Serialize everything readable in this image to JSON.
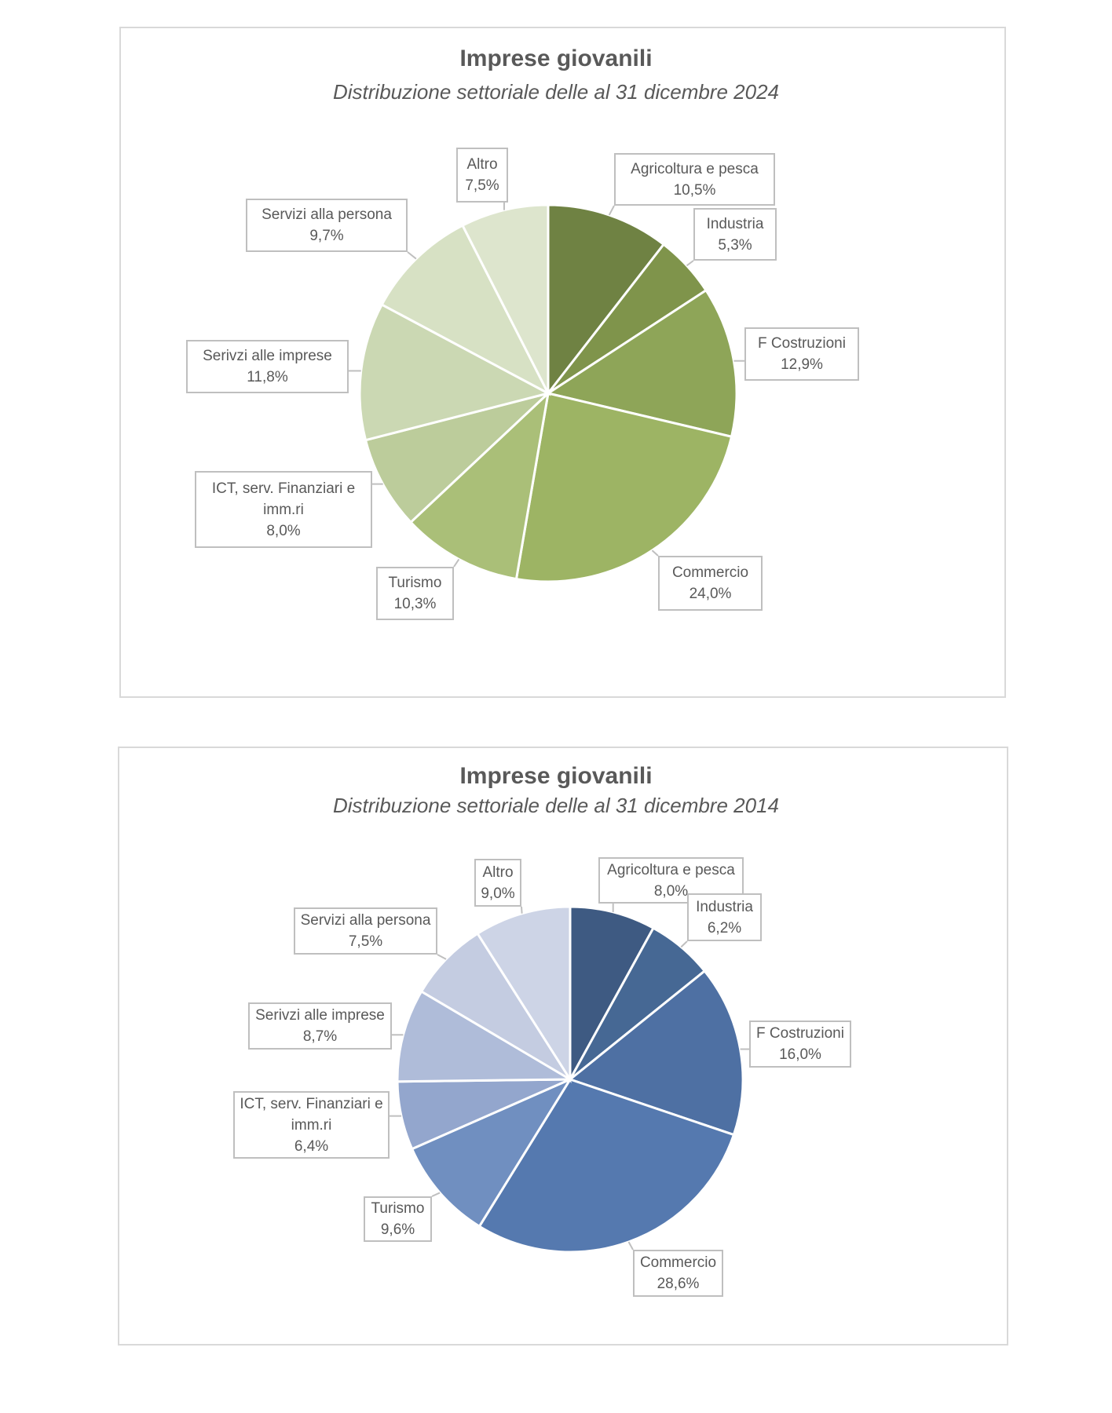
{
  "chart_data": [
    {
      "type": "pie",
      "title": "Imprese giovanili",
      "subtitle": "Distribuzione settoriale delle al 31 dicembre 2024",
      "start": "top, clockwise",
      "categories": [
        "Agricoltura e pesca",
        "Industria",
        "F Costruzioni",
        "Commercio",
        "Turismo",
        "ICT, serv. Finanziari e imm.ri",
        "Serivzi alle imprese",
        "Servizi alla persona",
        "Altro"
      ],
      "values": [
        10.5,
        5.3,
        12.9,
        24.0,
        10.3,
        8.0,
        11.8,
        9.7,
        7.5
      ],
      "value_labels": [
        "10,5%",
        "5,3%",
        "12,9%",
        "24,0%",
        "10,3%",
        "8,0%",
        "11,8%",
        "9,7%",
        "7,5%"
      ],
      "colors": [
        "#6f8243",
        "#7f944b",
        "#8ea558",
        "#9db464",
        "#aabf78",
        "#bccc9b",
        "#cbd8b3",
        "#d7e1c4",
        "#dde5cd"
      ]
    },
    {
      "type": "pie",
      "title": "Imprese giovanili",
      "subtitle": "Distribuzione settoriale delle al 31 dicembre 2014",
      "start": "top, clockwise",
      "categories": [
        "Agricoltura e pesca",
        "Industria",
        "F Costruzioni",
        "Commercio",
        "Turismo",
        "ICT, serv. Finanziari e imm.ri",
        "Serivzi alle imprese",
        "Servizi alla persona",
        "Altro"
      ],
      "values": [
        8.0,
        6.2,
        16.0,
        28.6,
        9.6,
        6.4,
        8.7,
        7.5,
        9.0
      ],
      "value_labels": [
        "8,0%",
        "6,2%",
        "16,0%",
        "28,6%",
        "9,6%",
        "6,4%",
        "8,7%",
        "7,5%",
        "9,0%"
      ],
      "colors": [
        "#3e5a82",
        "#466894",
        "#4e70a3",
        "#5579af",
        "#708fc0",
        "#93a6cd",
        "#afbcd9",
        "#c4cce1",
        "#cdd4e6"
      ]
    }
  ]
}
